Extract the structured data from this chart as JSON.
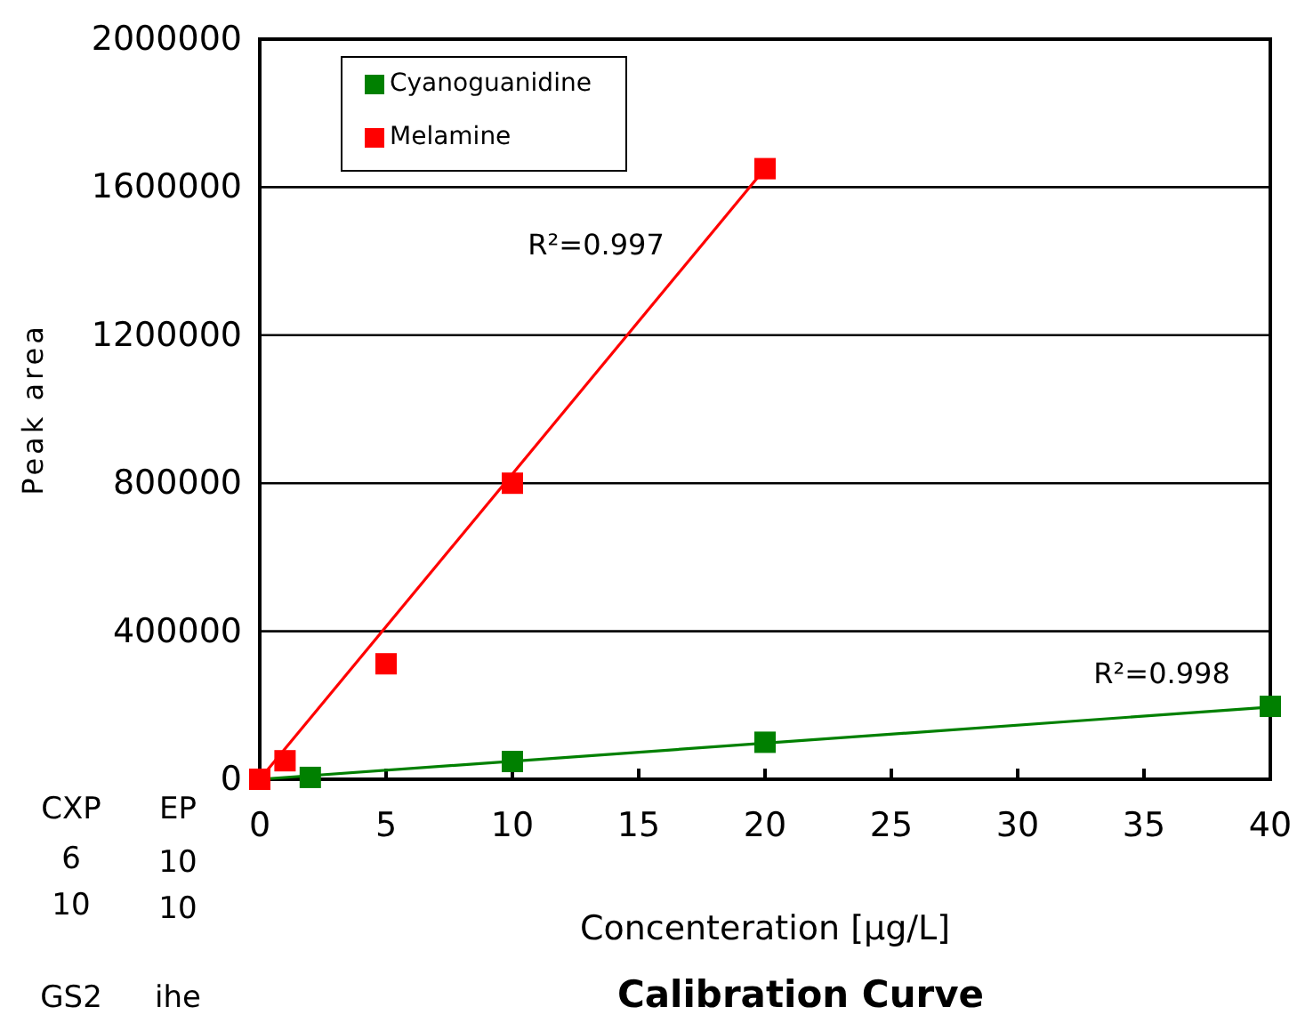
{
  "chart_data": {
    "type": "scatter",
    "title": "Calibration Curve",
    "xlabel": "Concenteration [µg/L]",
    "ylabel": "Peak area",
    "xlim": [
      0,
      40
    ],
    "xticks": [
      0,
      5,
      10,
      15,
      20,
      25,
      30,
      35,
      40
    ],
    "ylim": [
      0,
      2000000
    ],
    "yticks": [
      0,
      400000,
      800000,
      1200000,
      1600000,
      2000000
    ],
    "grid": "y",
    "legend": "top left",
    "marker": "square",
    "series": [
      {
        "name": "Cyanoguanidine",
        "color": "#008000",
        "x": [
          2,
          10,
          20,
          40
        ],
        "values": [
          5000,
          48000,
          100000,
          197000
        ]
      },
      {
        "name": "Melamine",
        "color": "#ff0000",
        "x": [
          0,
          1,
          5,
          10,
          20
        ],
        "values": [
          0,
          50000,
          312000,
          800000,
          1650000
        ]
      },
      {
        "type": "line",
        "color": "#008000",
        "x": [
          0,
          40
        ],
        "values": [
          0,
          195000
        ],
        "marker": "none"
      },
      {
        "type": "line",
        "color": "#ff0000",
        "x": [
          0,
          20
        ],
        "values": [
          0,
          1650000
        ],
        "marker": "none"
      }
    ],
    "annotations": [
      "R²=0.997",
      "R²=0.998",
      "CXP",
      "EP",
      "6",
      "10",
      "10",
      "10",
      "GS2",
      "ihe"
    ]
  }
}
